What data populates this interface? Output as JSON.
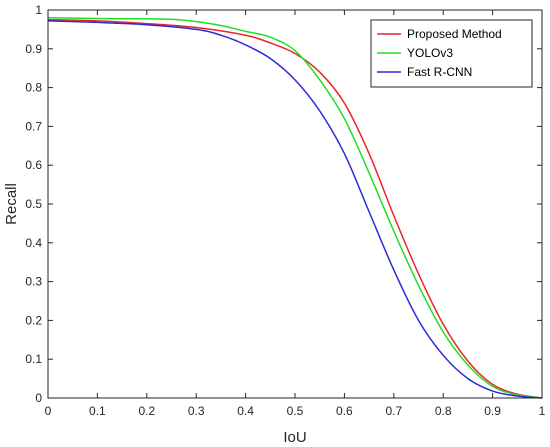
{
  "chart_data": {
    "type": "line",
    "title": "",
    "xlabel": "IoU",
    "ylabel": "Recall",
    "xlim": [
      0,
      1
    ],
    "ylim": [
      0,
      1
    ],
    "xticks": [
      "0",
      "0.1",
      "0.2",
      "0.3",
      "0.4",
      "0.5",
      "0.6",
      "0.7",
      "0.8",
      "0.9",
      "1"
    ],
    "yticks": [
      "0",
      "0.1",
      "0.2",
      "0.3",
      "0.4",
      "0.5",
      "0.6",
      "0.7",
      "0.8",
      "0.9",
      "1"
    ],
    "grid": false,
    "legend_position": "top-right",
    "series": [
      {
        "name": "Proposed Method",
        "color": "#e8262a",
        "x": [
          0,
          0.1,
          0.2,
          0.3,
          0.4,
          0.45,
          0.5,
          0.55,
          0.6,
          0.65,
          0.7,
          0.75,
          0.8,
          0.85,
          0.9,
          0.95,
          1.0
        ],
        "y": [
          0.975,
          0.972,
          0.965,
          0.955,
          0.935,
          0.915,
          0.888,
          0.84,
          0.76,
          0.63,
          0.47,
          0.32,
          0.19,
          0.095,
          0.035,
          0.01,
          0.0
        ]
      },
      {
        "name": "YOLOv3",
        "color": "#22dd22",
        "x": [
          0,
          0.1,
          0.2,
          0.25,
          0.3,
          0.35,
          0.4,
          0.45,
          0.5,
          0.55,
          0.6,
          0.65,
          0.7,
          0.75,
          0.8,
          0.85,
          0.9,
          0.95,
          1.0
        ],
        "y": [
          0.98,
          0.978,
          0.977,
          0.976,
          0.97,
          0.96,
          0.945,
          0.93,
          0.895,
          0.82,
          0.72,
          0.58,
          0.43,
          0.29,
          0.17,
          0.085,
          0.03,
          0.008,
          0.0
        ]
      },
      {
        "name": "Fast R-CNN",
        "color": "#2a2ad6",
        "x": [
          0,
          0.1,
          0.2,
          0.3,
          0.35,
          0.4,
          0.45,
          0.5,
          0.55,
          0.6,
          0.65,
          0.7,
          0.75,
          0.8,
          0.85,
          0.9,
          0.95,
          1.0
        ],
        "y": [
          0.972,
          0.968,
          0.962,
          0.95,
          0.935,
          0.91,
          0.875,
          0.82,
          0.74,
          0.63,
          0.48,
          0.33,
          0.2,
          0.11,
          0.05,
          0.018,
          0.005,
          0.0
        ]
      }
    ]
  }
}
